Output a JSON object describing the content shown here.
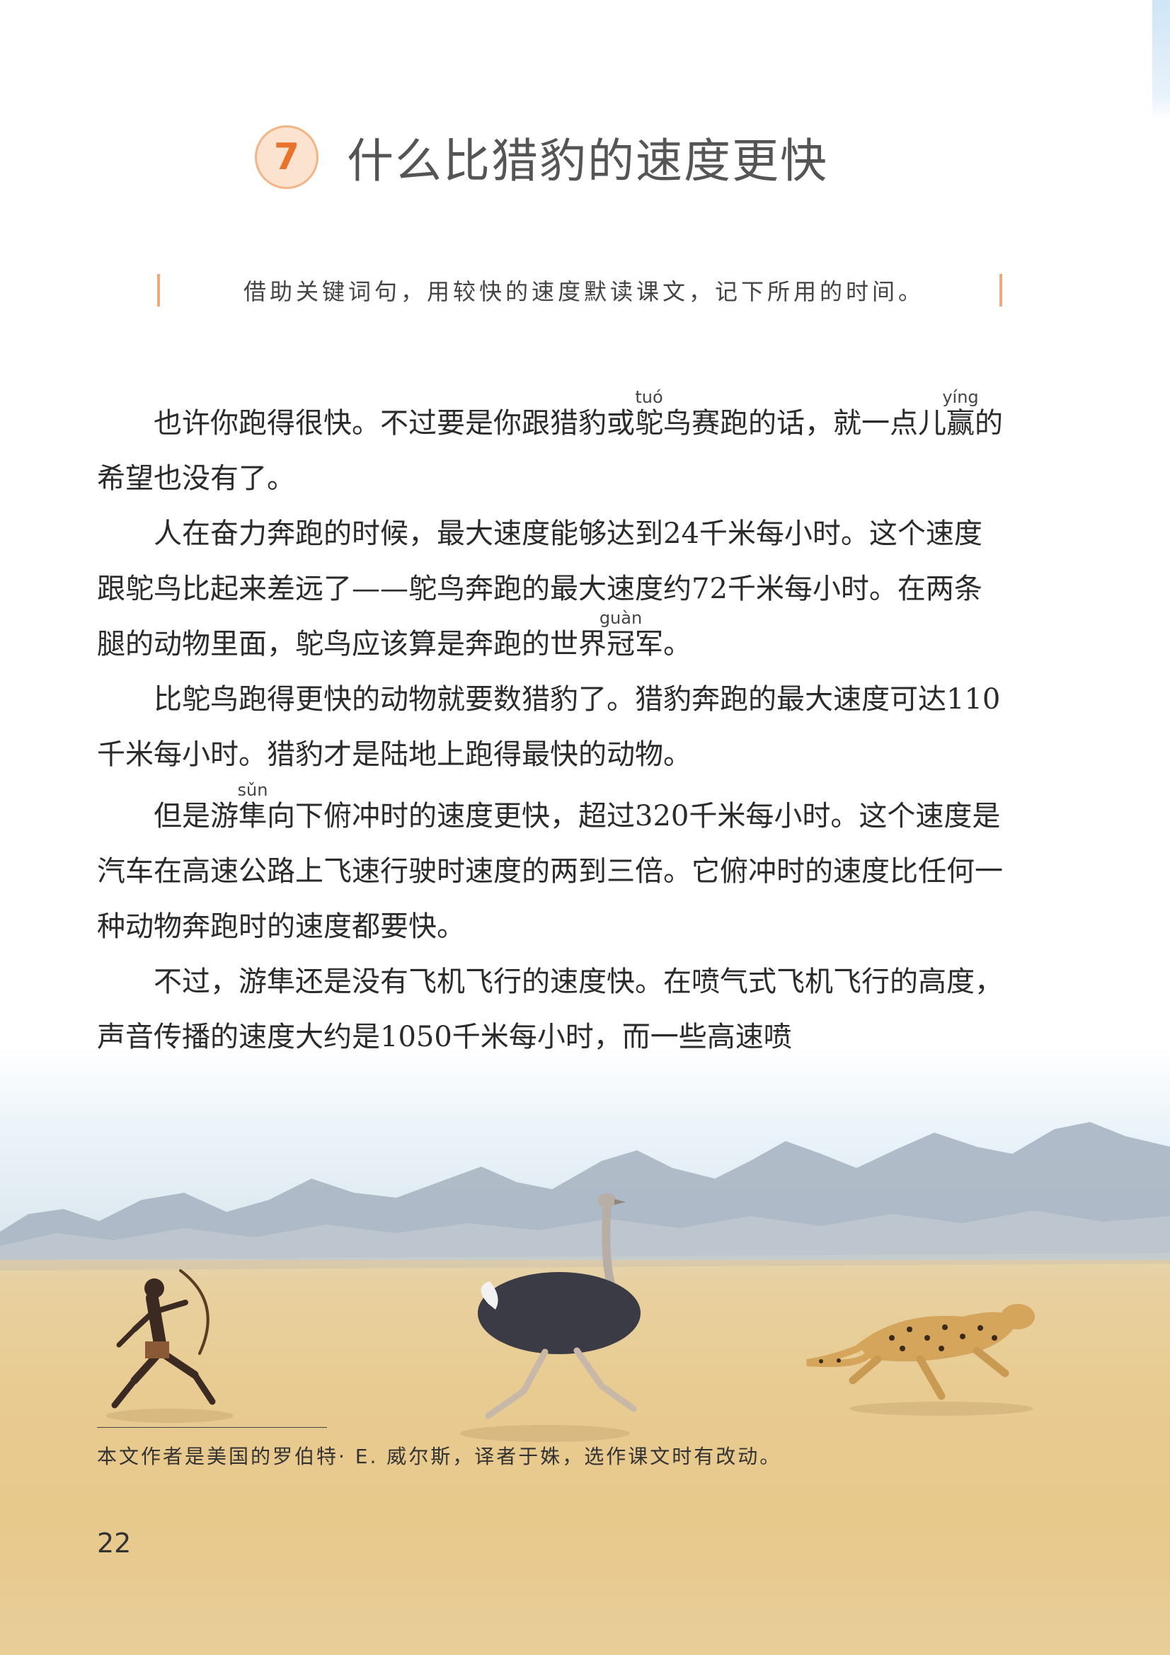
{
  "lesson": {
    "number": "7",
    "title": "什么比猎豹的速度更快"
  },
  "guide": {
    "instruction": "借助关键词句，用较快的速度默读课文，记下所用的时间。"
  },
  "paragraphs": {
    "p1": {
      "t1": "也许你跑得很快。不过要是你跟猎豹或",
      "ruby1_base": "鸵",
      "ruby1_pinyin": "tuó",
      "t2": "鸟赛跑的话，就一点儿",
      "ruby2_base": "赢",
      "ruby2_pinyin": "yíng",
      "t3": "的希望也没有了。"
    },
    "p2": {
      "t1": "人在奋力奔跑的时候，最大速度能够达到24千米每小时。这个速度跟鸵鸟比起来差远了——鸵鸟奔跑的最大速度约72千米每小时。在两条腿的动物里面，鸵鸟应该算是奔跑的世界",
      "ruby_base": "冠",
      "ruby_pinyin": "guàn",
      "t2": "军。"
    },
    "p3": {
      "t1": "比鸵鸟跑得更快的动物就要数猎豹了。猎豹奔跑的最大速度可达110千米每小时。猎豹才是陆地上跑得最快的动物。"
    },
    "p4": {
      "t1": "但是游",
      "ruby_base": "隼",
      "ruby_pinyin": "sǔn",
      "t2": "向下俯冲时的速度更快，超过320千米每小时。这个速度是汽车在高速公路上飞速行驶时速度的两到三倍。它俯冲时的速度比任何一种动物奔跑时的速度都要快。"
    },
    "p5": {
      "t1": "不过，游隼还是没有飞机飞行的速度快。在喷气式飞机飞行的高度，声音传播的速度大约是1050千米每小时，而一些高速喷"
    }
  },
  "footnote": "本文作者是美国的罗伯特· E. 威尔斯，译者于姝，选作课文时有改动。",
  "page_number": "22",
  "illustration": {
    "subjects": [
      "runner-icon",
      "ostrich-icon",
      "cheetah-icon",
      "mountains-icon"
    ],
    "sky_color": "#e4eef5",
    "ground_color": "#e8c98c",
    "mountain_color": "#a9b5c2"
  }
}
